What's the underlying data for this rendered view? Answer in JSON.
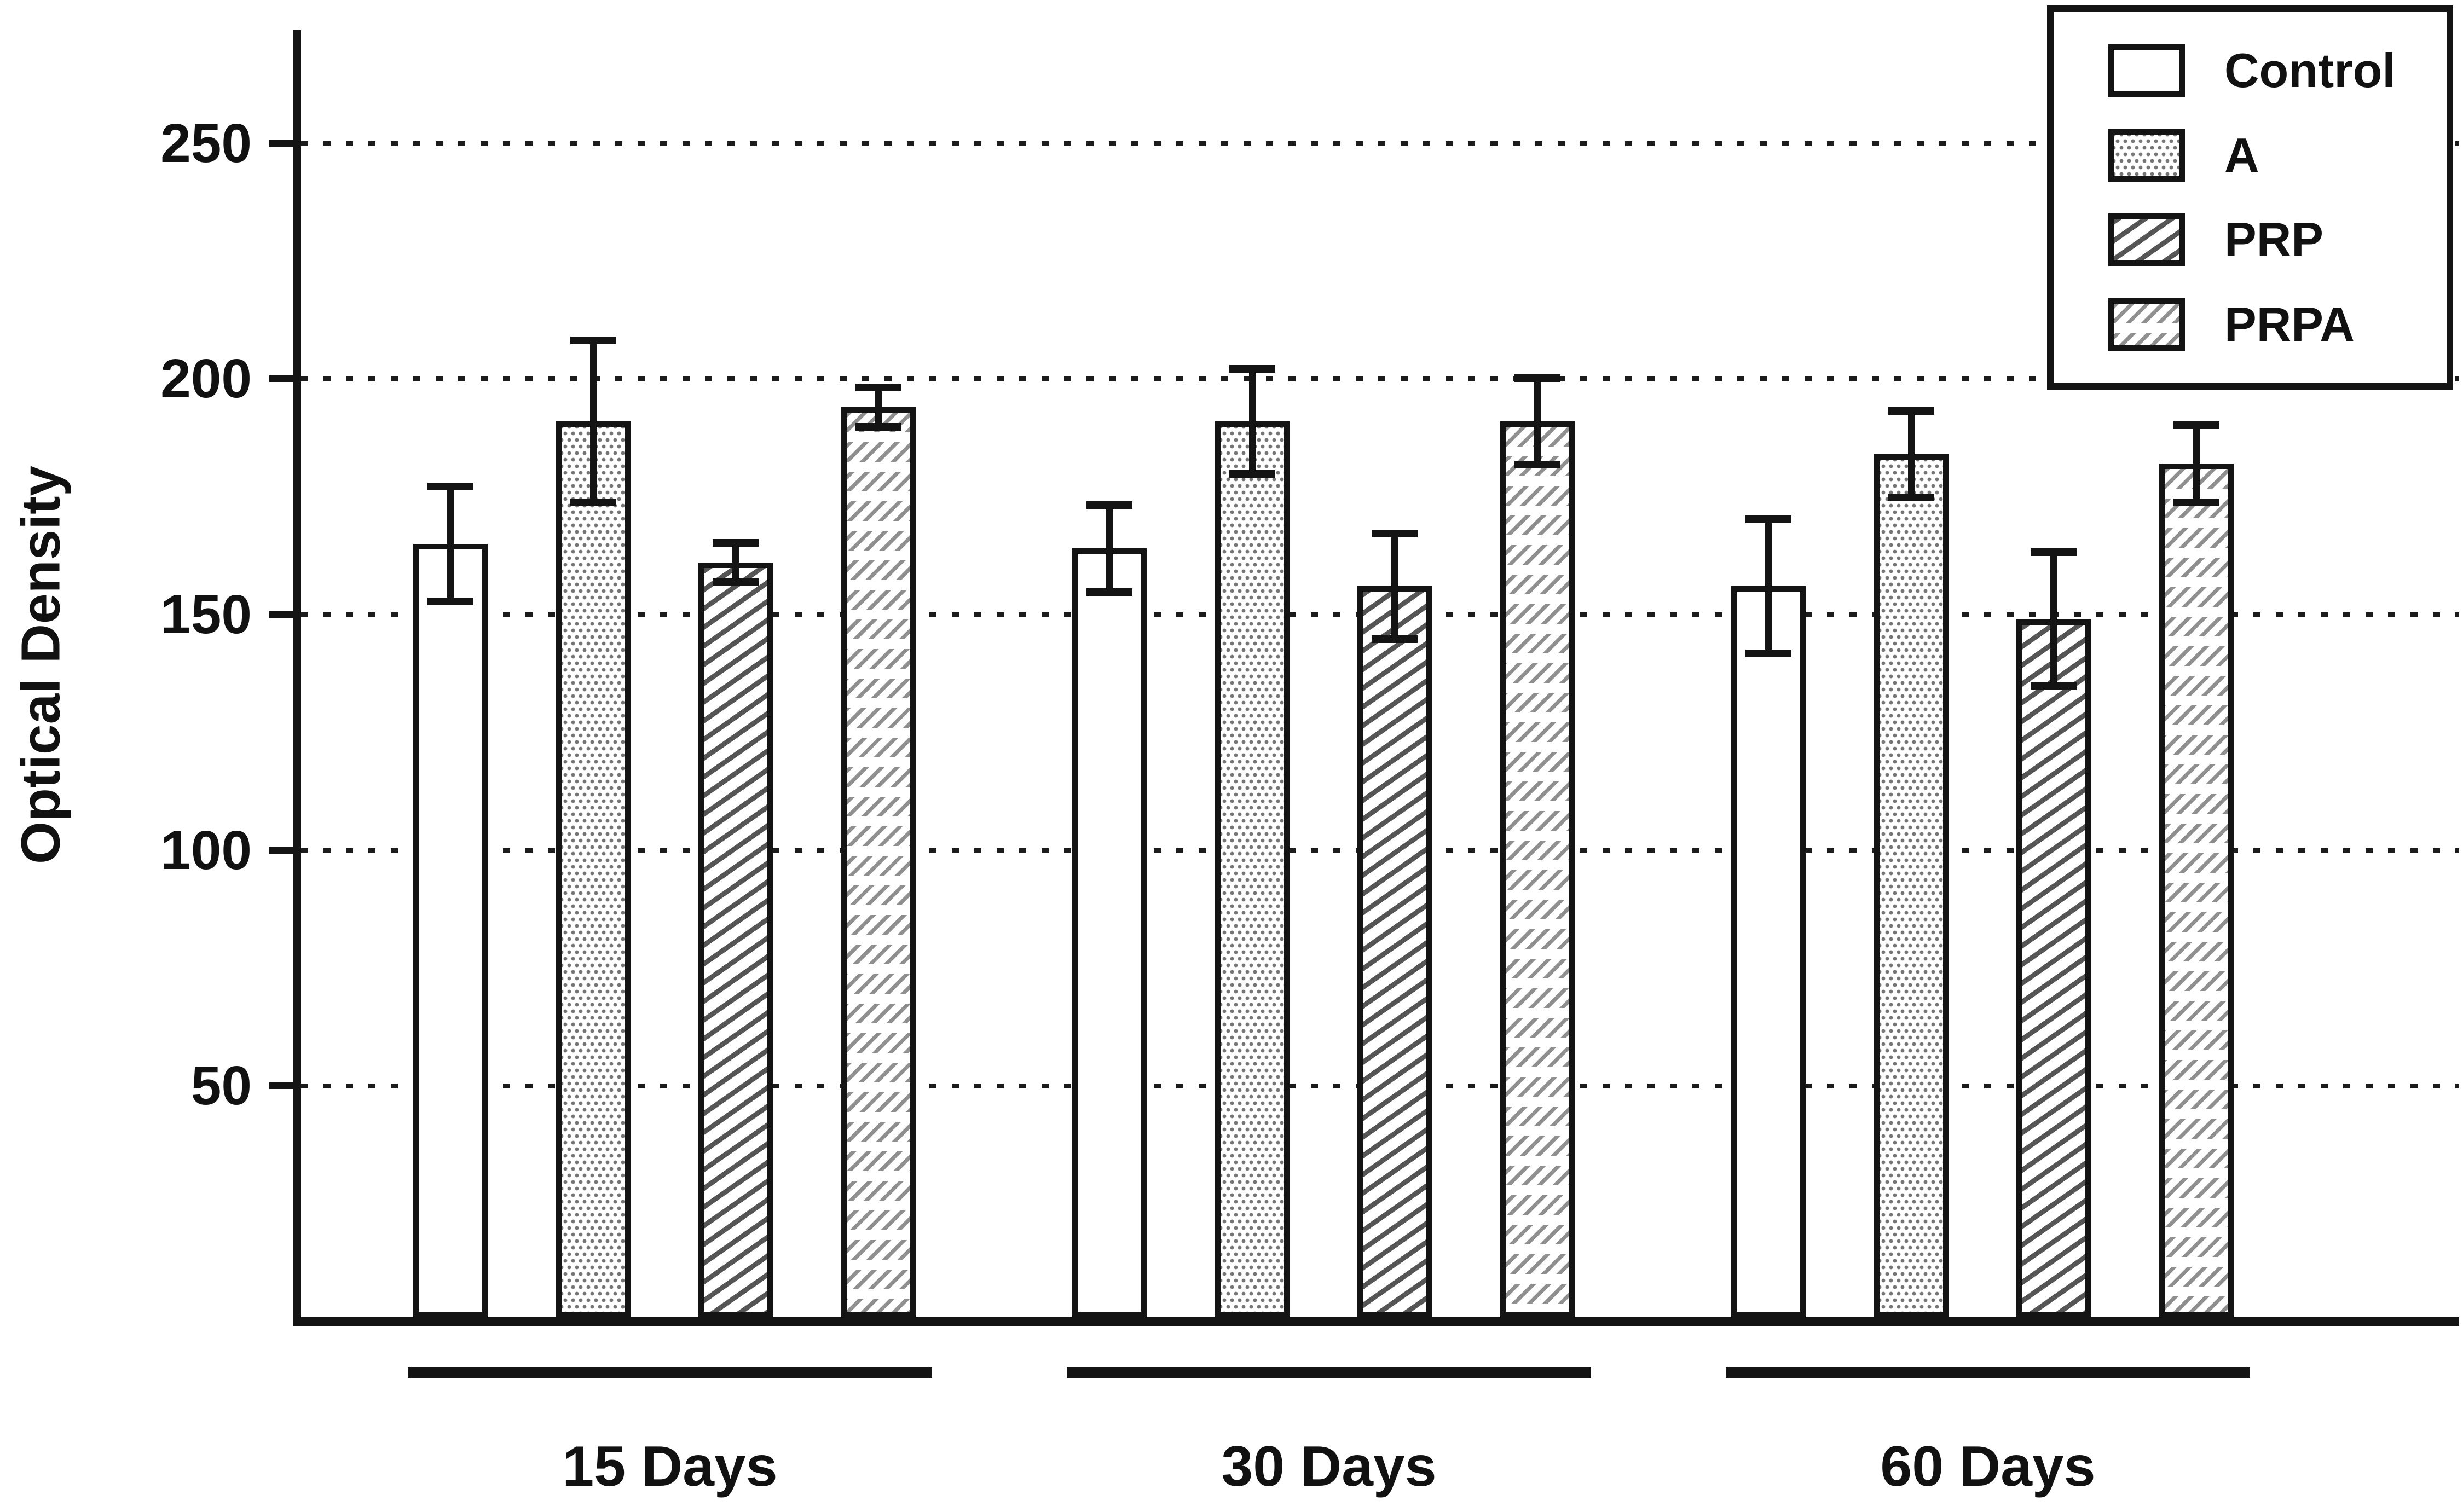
{
  "figure": {
    "background": "#ffffff",
    "ink_color": "#141414",
    "pattern_gray": "#8f8f8f"
  },
  "chart_data": {
    "type": "bar",
    "title": "",
    "xlabel": "",
    "ylabel": "Optical Density",
    "categories": [
      "15 Days",
      "30 Days",
      "60 Days"
    ],
    "series": [
      {
        "name": "Control",
        "pattern": "plain",
        "values": [
          165,
          164,
          156
        ],
        "errors": [
          13,
          10,
          15
        ]
      },
      {
        "name": "A",
        "pattern": "dots",
        "values": [
          191,
          191,
          184
        ],
        "errors": [
          18,
          12,
          10
        ]
      },
      {
        "name": "PRP",
        "pattern": "diagonal-hatch",
        "values": [
          161,
          156,
          149
        ],
        "errors": [
          5,
          12,
          15
        ]
      },
      {
        "name": "PRPA",
        "pattern": "dashed-diagonal-rows",
        "values": [
          194,
          191,
          182
        ],
        "errors": [
          5,
          10,
          9
        ]
      }
    ],
    "yticks": [
      50,
      100,
      150,
      200,
      250
    ],
    "ylim": [
      0,
      274
    ],
    "grid": "dotted horizontal lines at each y tick",
    "error_bars": true,
    "legend_position": "top-right",
    "group_underlines": true
  }
}
